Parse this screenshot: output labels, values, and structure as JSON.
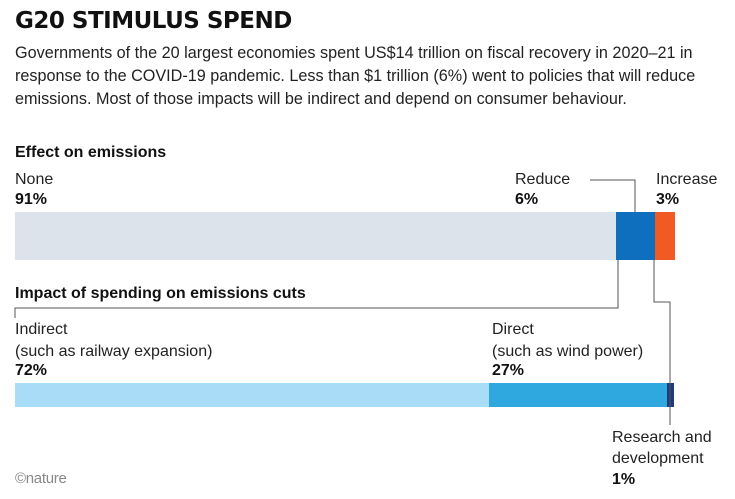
{
  "title": "G20 STIMULUS SPEND",
  "subtitle": "Governments of the 20 largest economies spent US$14 trillion on fiscal recovery in 2020–21 in response to the COVID-19 pandemic. Less than $1 trillion (6%) went to policies that will reduce emissions. Most of those impacts will be indirect and depend on consumer behaviour.",
  "footer": "©nature",
  "chart_data": [
    {
      "type": "bar",
      "orientation": "horizontal-stacked",
      "title": "Effect on emissions",
      "categories": [
        "None",
        "Reduce",
        "Increase"
      ],
      "values": [
        91,
        6,
        3
      ],
      "value_labels": [
        "91%",
        "6%",
        "3%"
      ],
      "colors": [
        "#dde3ea",
        "#0f6fbf",
        "#f15a22"
      ]
    },
    {
      "type": "bar",
      "orientation": "horizontal-stacked",
      "title": "Impact of spending on emissions cuts",
      "categories": [
        "Indirect",
        "Direct",
        "Research and development"
      ],
      "category_notes": [
        "(such as railway expansion)",
        "(such as wind power)",
        ""
      ],
      "values": [
        72,
        27,
        1
      ],
      "value_labels": [
        "72%",
        "27%",
        "1%"
      ],
      "colors": [
        "#a8dcf7",
        "#2fa8e0",
        "#1f3b7a"
      ]
    }
  ]
}
